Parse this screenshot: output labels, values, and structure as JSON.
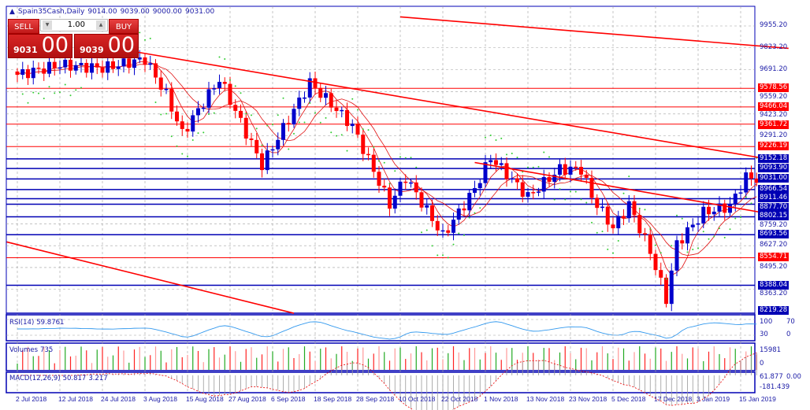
{
  "header": {
    "symbol": "Spain35Cash,Daily",
    "open": "9014.00",
    "high": "9039.00",
    "low": "9000.00",
    "close": "9031.00"
  },
  "trade_panel": {
    "sell_label": "SELL",
    "buy_label": "BUY",
    "lot": "1.00",
    "sell_price_small": "9031",
    "sell_price_big": "00",
    "buy_price_small": "9039",
    "buy_price_big": "00"
  },
  "colors": {
    "axis": "#0000b4",
    "bull": "#0000cc",
    "bear": "#ff0000",
    "grid": "#a0a0a0",
    "level_red": "#ff0000",
    "level_blue": "#0000b4"
  },
  "chart_data": {
    "type": "candlestick",
    "title": "Spain35Cash,Daily",
    "ylim": [
      8219.28,
      9955.2
    ],
    "price_ticks": [
      "9955.20",
      "9823.20",
      "9691.20",
      "9559.20",
      "9423.20",
      "9291.20",
      "8759.20",
      "8627.20",
      "8495.20",
      "8363.20"
    ],
    "levels_red": [
      "9578.56",
      "9466.04",
      "9361.72",
      "9226.19",
      "8554.71"
    ],
    "levels_blue": [
      "9152.18",
      "9093.90",
      "9031.00",
      "8966.54",
      "8911.46",
      "8877.70",
      "8802.15",
      "8693.56",
      "8388.04",
      "8219.28"
    ],
    "dates": [
      "2 Jul 2018",
      "12 Jul 2018",
      "24 Jul 2018",
      "3 Aug 2018",
      "15 Aug 2018",
      "27 Aug 2018",
      "6 Sep 2018",
      "18 Sep 2018",
      "28 Sep 2018",
      "10 Oct 2018",
      "22 Oct 2018",
      "1 Nov 2018",
      "13 Nov 2018",
      "23 Nov 2018",
      "5 Dec 2018",
      "17 Dec 2018",
      "3 Jan 2019",
      "15 Jan 2019"
    ],
    "date_index": [
      0,
      8,
      16,
      24,
      32,
      40,
      48,
      56,
      64,
      72,
      80,
      88,
      96,
      104,
      112,
      120,
      128,
      136
    ],
    "close_waypoints": [
      [
        0,
        9660
      ],
      [
        8,
        9720
      ],
      [
        16,
        9700
      ],
      [
        24,
        9755
      ],
      [
        28,
        9540
      ],
      [
        31,
        9304
      ],
      [
        38,
        9636
      ],
      [
        46,
        9114
      ],
      [
        55,
        9613
      ],
      [
        63,
        9351
      ],
      [
        70,
        8876
      ],
      [
        73,
        9042
      ],
      [
        80,
        8686
      ],
      [
        86,
        8971
      ],
      [
        89,
        9161
      ],
      [
        96,
        8924
      ],
      [
        102,
        9090
      ],
      [
        106,
        9090
      ],
      [
        108,
        8924
      ],
      [
        112,
        8733
      ],
      [
        115,
        8876
      ],
      [
        119,
        8591
      ],
      [
        122,
        8305
      ],
      [
        124,
        8638
      ],
      [
        129,
        8828
      ],
      [
        134,
        8866
      ],
      [
        137,
        9042
      ],
      [
        139,
        9031
      ]
    ],
    "trendlines": [
      {
        "from": [
          72,
          10010
        ],
        "to": [
          145,
          9820
        ]
      },
      {
        "from": [
          22,
          9800
        ],
        "to": [
          145,
          9130
        ]
      },
      {
        "from": [
          86,
          9130
        ],
        "to": [
          145,
          8800
        ]
      },
      {
        "from": [
          -2,
          8650
        ],
        "to": [
          52,
          8219
        ]
      }
    ]
  },
  "indicators": {
    "rsi": {
      "label": "RSI(14)",
      "value": "59.8761",
      "scale": [
        "100",
        "70",
        "30",
        "0"
      ]
    },
    "volumes": {
      "label": "Volumes",
      "value": "735",
      "scale": [
        "15981",
        "0"
      ]
    },
    "macd": {
      "label": "MACD(12,26,9)",
      "value1": "50.817",
      "value2": "3.217",
      "scale": [
        "61.877",
        "0.00",
        "-181.439"
      ]
    }
  }
}
